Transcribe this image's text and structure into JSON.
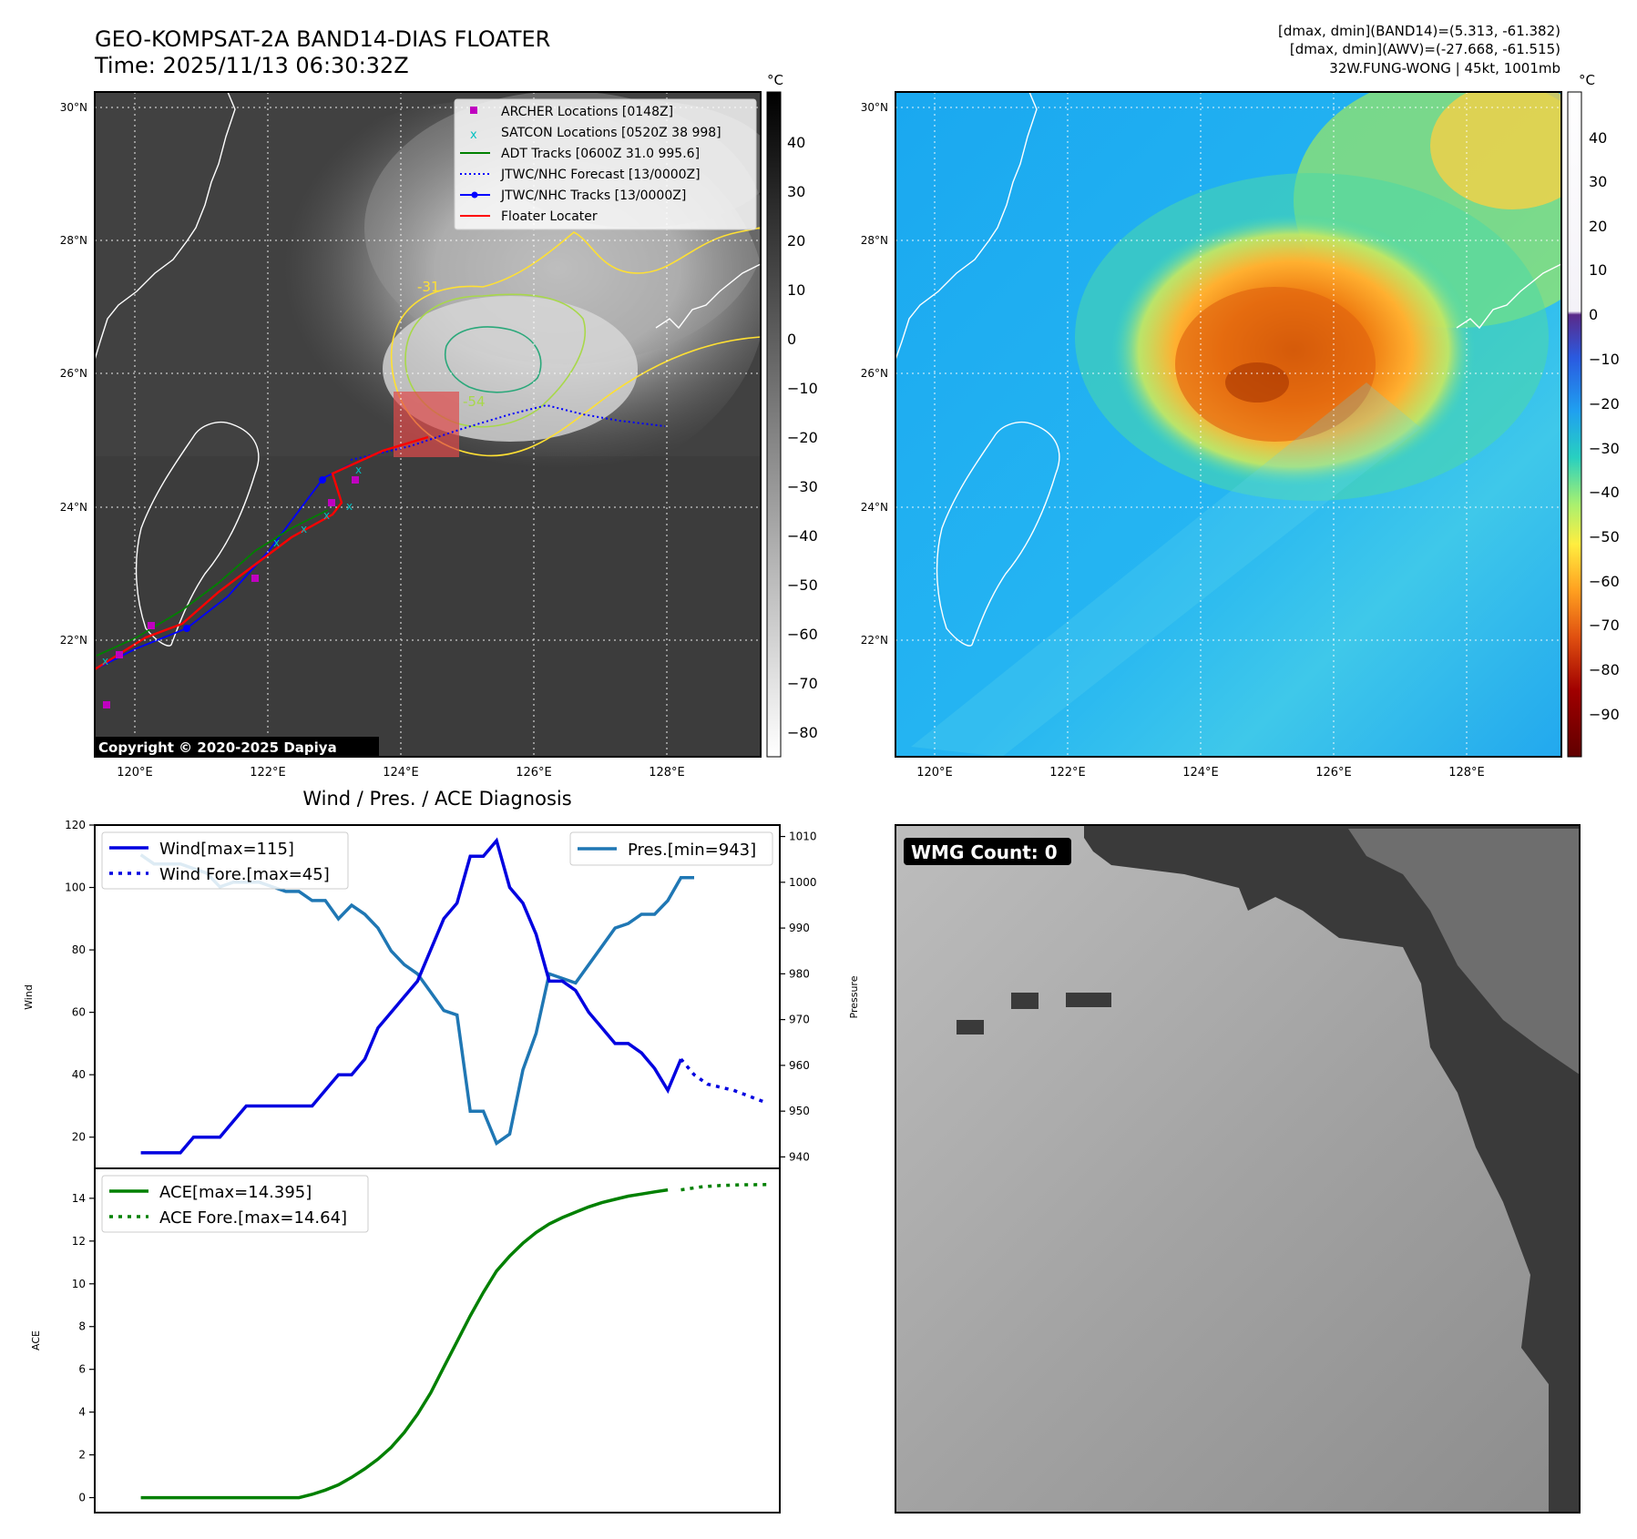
{
  "header": {
    "title_line1": "GEO-KOMPSAT-2A BAND14-DIAS FLOATER",
    "title_line2": "Time: 2025/11/13 06:30:32Z",
    "stats_line1": "[dmax, dmin](BAND14)=(5.313, -61.382)",
    "stats_line2": "[dmax, dmin](AWV)=(-27.668, -61.515)",
    "stats_line3": "32W.FUNG-WONG | 45kt, 1001mb"
  },
  "maps": {
    "lat_labels": [
      "30°N",
      "28°N",
      "26°N",
      "24°N",
      "22°N"
    ],
    "lon_labels": [
      "120°E",
      "122°E",
      "124°E",
      "126°E",
      "128°E"
    ],
    "colorbar_unit": "°C",
    "left_colorbar_ticks": [
      "40",
      "30",
      "20",
      "10",
      "0",
      "−10",
      "−20",
      "−30",
      "−40",
      "−50",
      "−60",
      "−70",
      "−80"
    ],
    "right_colorbar_ticks": [
      "40",
      "30",
      "20",
      "10",
      "0",
      "−10",
      "−20",
      "−30",
      "−40",
      "−50",
      "−60",
      "−70",
      "−80",
      "−90"
    ],
    "copyright": "Copyright © 2020-2025 Dapiya",
    "contour_labels": [
      "-31",
      "-54"
    ],
    "legend": [
      {
        "label": "ARCHER Locations [0148Z]",
        "color": "#c000c0"
      },
      {
        "label": "SATCON Locations [0520Z 38 998]",
        "color": "#00c0c0"
      },
      {
        "label": "ADT Tracks [0600Z 31.0 995.6]",
        "color": "#008000"
      },
      {
        "label": "JTWC/NHC Forecast [13/0000Z]",
        "color": "#0000ff"
      },
      {
        "label": "JTWC/NHC Tracks [13/0000Z]",
        "color": "#0000ff"
      },
      {
        "label": "Floater Locater",
        "color": "#ff0000"
      }
    ],
    "colors": {
      "land_outline": "#ffffff",
      "contour_yellow": "#ffe033",
      "contour_green": "#a8d84a",
      "contour_teal": "#2aa87a",
      "floater_box": "#e04a4a"
    }
  },
  "wmg": {
    "label": "WMG Count: 0"
  },
  "chart_data": [
    {
      "type": "line",
      "title": "Wind / Pres. / ACE Diagnosis",
      "ylabel": "Wind",
      "ylim": [
        10,
        120
      ],
      "yticks": [
        20,
        40,
        60,
        80,
        100,
        120
      ],
      "y2label": "Pressure",
      "y2lim": [
        937.5,
        1012.5
      ],
      "y2ticks": [
        940,
        950,
        960,
        970,
        980,
        990,
        1000,
        1010
      ],
      "x": [
        0,
        1,
        2,
        3,
        4,
        5,
        6,
        7,
        8,
        9,
        10,
        11,
        12,
        13,
        14,
        15,
        16,
        17,
        18,
        19,
        20,
        21,
        22,
        23,
        24,
        25,
        26,
        27,
        28,
        29,
        30,
        31,
        32,
        33,
        34,
        35,
        36,
        37,
        38,
        39,
        40,
        41,
        42
      ],
      "series": [
        {
          "name": "Wind[max=115]",
          "color": "#0000e0",
          "style": "solid",
          "values": [
            15,
            15,
            15,
            15,
            20,
            20,
            20,
            25,
            30,
            30,
            30,
            30,
            30,
            30,
            35,
            40,
            40,
            45,
            55,
            60,
            65,
            70,
            80,
            90,
            95,
            110,
            110,
            115,
            100,
            95,
            85,
            70,
            70,
            67,
            60,
            55,
            50,
            50,
            47,
            42,
            35,
            45,
            null
          ]
        },
        {
          "name": "Wind Fore.[max=45]",
          "color": "#0000e0",
          "style": "dotted",
          "x": [
            41,
            42,
            43,
            45,
            47.5
          ],
          "values": [
            45,
            40,
            37,
            35,
            31
          ]
        },
        {
          "name": "Pres.[min=943]",
          "color": "#1f77b4",
          "style": "solid",
          "axis": "right",
          "values": [
            1006,
            1004,
            1004,
            1004,
            1003,
            1002,
            999,
            1000,
            1000,
            1000,
            999,
            998,
            998,
            996,
            996,
            992,
            995,
            993,
            990,
            985,
            982,
            980,
            976,
            972,
            971,
            950,
            950,
            943,
            945,
            959,
            967,
            980,
            979,
            978,
            982,
            986,
            990,
            991,
            993,
            993,
            996,
            1001,
            1001
          ]
        }
      ],
      "legend_left": [
        "Wind[max=115]",
        "Wind Fore.[max=45]"
      ],
      "legend_right": [
        "Pres.[min=943]"
      ]
    },
    {
      "type": "line",
      "ylabel": "ACE",
      "ylim": [
        -0.7,
        15.4
      ],
      "yticks": [
        0,
        2,
        4,
        6,
        8,
        10,
        12,
        14
      ],
      "x": [
        0,
        1,
        2,
        3,
        4,
        5,
        6,
        7,
        8,
        9,
        10,
        11,
        12,
        13,
        14,
        15,
        16,
        17,
        18,
        19,
        20,
        21,
        22,
        23,
        24,
        25,
        26,
        27,
        28,
        29,
        30,
        31,
        32,
        33,
        34,
        35,
        36,
        37,
        38,
        39,
        40,
        41,
        42
      ],
      "series": [
        {
          "name": "ACE[max=14.395]",
          "color": "#008000",
          "style": "solid",
          "values": [
            0,
            0,
            0,
            0,
            0,
            0,
            0,
            0,
            0,
            0,
            0,
            0,
            0,
            0.15,
            0.35,
            0.6,
            0.95,
            1.35,
            1.8,
            2.35,
            3.05,
            3.9,
            4.9,
            6.1,
            7.3,
            8.5,
            9.6,
            10.6,
            11.3,
            11.9,
            12.4,
            12.8,
            13.1,
            13.35,
            13.6,
            13.8,
            13.95,
            14.1,
            14.2,
            14.3,
            14.395,
            null,
            null
          ]
        },
        {
          "name": "ACE Fore.[max=14.64]",
          "color": "#008000",
          "style": "dotted",
          "x": [
            41,
            42.5,
            44,
            45.5,
            47.5
          ],
          "values": [
            14.395,
            14.53,
            14.6,
            14.63,
            14.64
          ]
        }
      ]
    }
  ]
}
